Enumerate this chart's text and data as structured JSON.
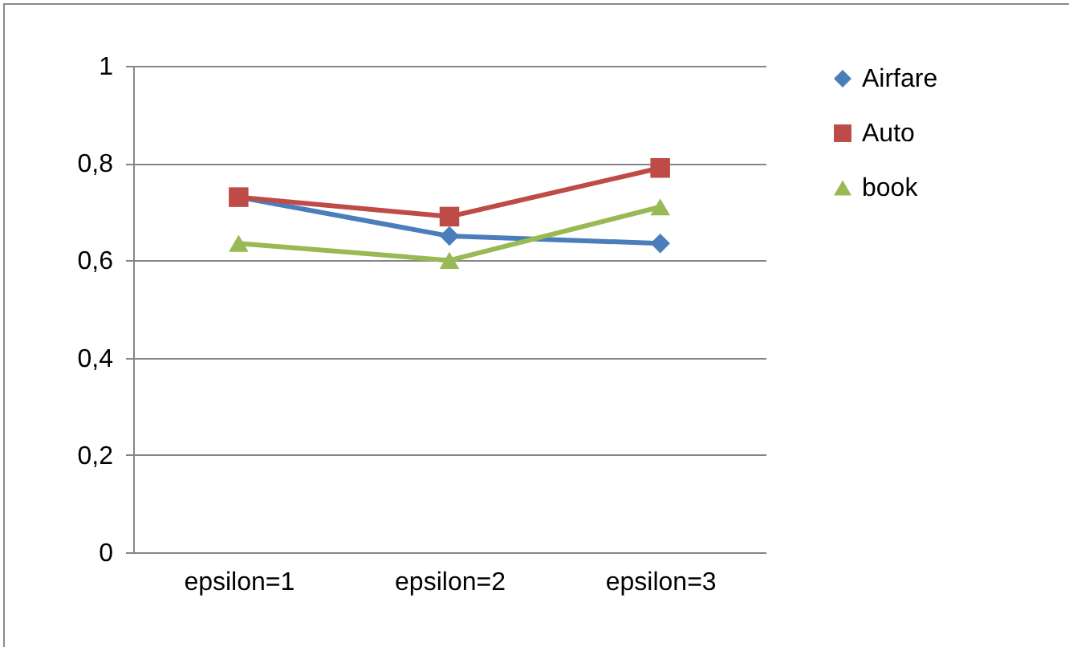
{
  "chart_data": {
    "type": "line",
    "categories": [
      "epsilon=1",
      "epsilon=2",
      "epsilon=3"
    ],
    "series": [
      {
        "name": "Airfare",
        "color": "#4a7ebb",
        "marker": "diamond",
        "values": [
          0.73,
          0.65,
          0.635
        ]
      },
      {
        "name": "Auto",
        "color": "#be4b48",
        "marker": "square",
        "values": [
          0.73,
          0.69,
          0.79
        ]
      },
      {
        "name": "book",
        "color": "#98b954",
        "marker": "triangle",
        "values": [
          0.635,
          0.6,
          0.71
        ]
      }
    ],
    "ylim": [
      0,
      1
    ],
    "yticks": [
      0,
      {
        "value": 0.2,
        "label": "0,2"
      },
      {
        "value": 0.4,
        "label": "0,4"
      },
      {
        "value": 0.6,
        "label": "0,6"
      },
      {
        "value": 0.8,
        "label": "0,8"
      },
      1
    ],
    "grid": "y",
    "legend": "right",
    "line_style": "solid"
  }
}
